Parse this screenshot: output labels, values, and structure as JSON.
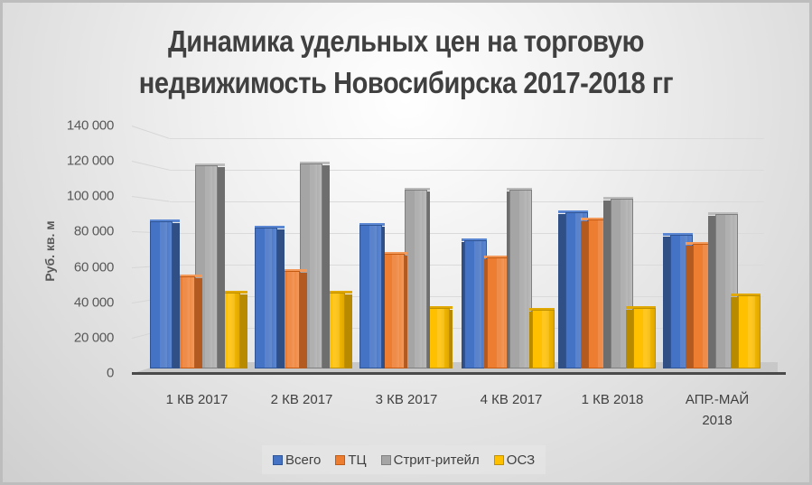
{
  "chart_data": {
    "type": "bar",
    "subtype": "3d-clustered-column",
    "title": "Динамика удельных цен на торговую недвижимость Новосибирска 2017-2018 гг",
    "title_lines": [
      "Динамика удельных цен на торговую",
      "недвижимость Новосибирска 2017-2018 гг"
    ],
    "xlabel": "",
    "ylabel": "Руб. кв. м",
    "ylim": [
      0,
      140000
    ],
    "yticks": [
      0,
      20000,
      40000,
      60000,
      80000,
      100000,
      120000,
      140000
    ],
    "ytick_labels": [
      "0",
      "20 000",
      "40 000",
      "60 000",
      "80 000",
      "100 000",
      "120 000",
      "140 000"
    ],
    "grid": true,
    "legend_position": "bottom",
    "categories": [
      "1 КВ 2017",
      "2 КВ 2017",
      "3 КВ 2017",
      "4 КВ 2017",
      "1 КВ 2018",
      "АПР.-МАЙ 2018"
    ],
    "category_lines": [
      [
        "1 КВ 2017"
      ],
      [
        "2 КВ 2017"
      ],
      [
        "3 КВ 2017"
      ],
      [
        "4 КВ 2017"
      ],
      [
        "1 КВ 2018"
      ],
      [
        "АПР.-МАЙ",
        "2018"
      ]
    ],
    "series": [
      {
        "name": "Всего",
        "color": "#4472c4",
        "values": [
          85000,
          81000,
          83000,
          74000,
          90000,
          77000
        ]
      },
      {
        "name": "ТЦ",
        "color": "#ed7d31",
        "values": [
          53000,
          56000,
          66000,
          64000,
          86000,
          72000
        ]
      },
      {
        "name": "Стрит-ритейл",
        "color": "#a5a5a5",
        "values": [
          117000,
          118000,
          103000,
          103000,
          98000,
          89000
        ]
      },
      {
        "name": "ОСЗ",
        "color": "#ffc000",
        "values": [
          44000,
          44000,
          35000,
          34000,
          35000,
          42000
        ]
      }
    ]
  },
  "legend": {
    "items": [
      {
        "label": "Всего",
        "color": "#4472c4",
        "border": "#2f5597"
      },
      {
        "label": "ТЦ",
        "color": "#ed7d31",
        "border": "#c55a11"
      },
      {
        "label": "Стрит-ритейл",
        "color": "#a5a5a5",
        "border": "#7f7f7f"
      },
      {
        "label": "ОСЗ",
        "color": "#ffc000",
        "border": "#bf9000"
      }
    ]
  }
}
